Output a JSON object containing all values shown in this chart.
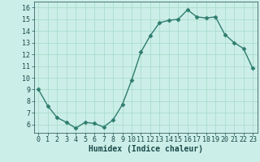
{
  "x": [
    0,
    1,
    2,
    3,
    4,
    5,
    6,
    7,
    8,
    9,
    10,
    11,
    12,
    13,
    14,
    15,
    16,
    17,
    18,
    19,
    20,
    21,
    22,
    23
  ],
  "y": [
    9.0,
    7.6,
    6.6,
    6.2,
    5.7,
    6.2,
    6.1,
    5.8,
    6.4,
    7.7,
    9.8,
    12.2,
    13.6,
    14.7,
    14.9,
    15.0,
    15.8,
    15.2,
    15.1,
    15.2,
    13.7,
    13.0,
    12.5,
    10.8
  ],
  "line_color": "#2e7d6e",
  "marker": "D",
  "markersize": 2.5,
  "linewidth": 1.0,
  "xlabel": "Humidex (Indice chaleur)",
  "xlim": [
    -0.5,
    23.5
  ],
  "ylim": [
    5.3,
    16.5
  ],
  "yticks": [
    6,
    7,
    8,
    9,
    10,
    11,
    12,
    13,
    14,
    15,
    16
  ],
  "xticks": [
    0,
    1,
    2,
    3,
    4,
    5,
    6,
    7,
    8,
    9,
    10,
    11,
    12,
    13,
    14,
    15,
    16,
    17,
    18,
    19,
    20,
    21,
    22,
    23
  ],
  "bg_color": "#cceee8",
  "grid_color": "#aaddcc",
  "font_color": "#1a4a4a",
  "xlabel_fontsize": 7,
  "tick_fontsize": 6
}
